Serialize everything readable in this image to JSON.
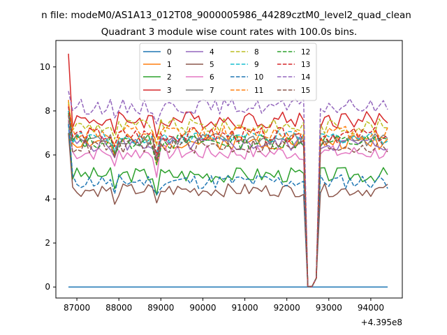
{
  "chart_data": {
    "type": "line",
    "title_line1": "n file: modeM0/AS1A13_012T08_9000005986_44289cztM0_level2_quad_clean",
    "title_line2": "Quadrant 3 module wise count rates with 100.0s bins.",
    "xlabel": "",
    "ylabel": "",
    "x_offset_label": "+4.395e8",
    "xlim": [
      86500,
      94750
    ],
    "ylim": [
      -0.5,
      11.2
    ],
    "x_ticks": [
      87000,
      88000,
      89000,
      90000,
      91000,
      92000,
      93000,
      94000
    ],
    "x_tick_labels": [
      "87000",
      "88000",
      "89000",
      "90000",
      "91000",
      "92000",
      "93000",
      "94000"
    ],
    "y_ticks": [
      0,
      2,
      4,
      6,
      8,
      10
    ],
    "y_tick_labels": [
      "0",
      "2",
      "4",
      "6",
      "8",
      "10"
    ],
    "grid": false,
    "legend_position": "upper center",
    "legend_columns": 4,
    "x_start": 86800,
    "x_step": 100,
    "n_points": 77,
    "gap_start": 92450,
    "gap_end": 92750,
    "gap_values": [
      0.4,
      0.02,
      0.02,
      0.4
    ],
    "series": [
      {
        "name": "0",
        "color": "#1f77b4",
        "dashed": false,
        "base": 0.0,
        "spike": 0.0,
        "amp": 0.0,
        "seed": 1
      },
      {
        "name": "1",
        "color": "#ff7f0e",
        "dashed": false,
        "base": 6.6,
        "spike": 8.5,
        "amp": 0.35,
        "seed": 2
      },
      {
        "name": "2",
        "color": "#2ca02c",
        "dashed": false,
        "base": 5.1,
        "spike": 7.6,
        "amp": 0.35,
        "seed": 3
      },
      {
        "name": "3",
        "color": "#d62728",
        "dashed": false,
        "base": 7.6,
        "spike": 10.6,
        "amp": 0.4,
        "seed": 4
      },
      {
        "name": "4",
        "color": "#9467bd",
        "dashed": false,
        "base": 6.5,
        "spike": 8.2,
        "amp": 0.35,
        "seed": 5
      },
      {
        "name": "5",
        "color": "#8c564b",
        "dashed": false,
        "base": 4.4,
        "spike": 7.0,
        "amp": 0.3,
        "seed": 6
      },
      {
        "name": "6",
        "color": "#e377c2",
        "dashed": false,
        "base": 6.1,
        "spike": 7.6,
        "amp": 0.35,
        "seed": 7
      },
      {
        "name": "7",
        "color": "#7f7f7f",
        "dashed": false,
        "base": 6.7,
        "spike": 8.0,
        "amp": 0.3,
        "seed": 8
      },
      {
        "name": "8",
        "color": "#bcbd22",
        "dashed": true,
        "base": 7.3,
        "spike": 8.4,
        "amp": 0.35,
        "seed": 9
      },
      {
        "name": "9",
        "color": "#17becf",
        "dashed": true,
        "base": 6.8,
        "spike": 8.0,
        "amp": 0.3,
        "seed": 10
      },
      {
        "name": "10",
        "color": "#1f77b4",
        "dashed": true,
        "base": 4.8,
        "spike": 7.4,
        "amp": 0.35,
        "seed": 11
      },
      {
        "name": "11",
        "color": "#ff7f0e",
        "dashed": true,
        "base": 7.0,
        "spike": 8.3,
        "amp": 0.35,
        "seed": 12
      },
      {
        "name": "12",
        "color": "#2ca02c",
        "dashed": true,
        "base": 6.6,
        "spike": 7.9,
        "amp": 0.35,
        "seed": 13
      },
      {
        "name": "13",
        "color": "#d62728",
        "dashed": true,
        "base": 6.9,
        "spike": 8.2,
        "amp": 0.35,
        "seed": 14
      },
      {
        "name": "14",
        "color": "#9467bd",
        "dashed": true,
        "base": 8.2,
        "spike": 8.9,
        "amp": 0.35,
        "seed": 15
      },
      {
        "name": "15",
        "color": "#8c564b",
        "dashed": true,
        "base": 6.4,
        "spike": 7.8,
        "amp": 0.35,
        "seed": 16
      }
    ]
  }
}
